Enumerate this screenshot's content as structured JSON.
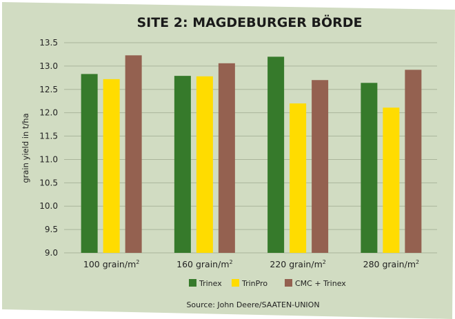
{
  "chart_data": {
    "type": "bar",
    "title": "SITE 2: MAGDEBURGER BÖRDE",
    "ylabel": "grain yield in t/ha",
    "xlabel": "",
    "ylim": [
      9.0,
      13.5
    ],
    "yticks": [
      "9.0",
      "9.5",
      "10.0",
      "10.5",
      "11.0",
      "11.5",
      "12.0",
      "12.5",
      "13.0",
      "13.5"
    ],
    "categories": [
      {
        "base": "100 grain/m",
        "sup": "2"
      },
      {
        "base": "160 grain/m",
        "sup": "2"
      },
      {
        "base": "220 grain/m",
        "sup": "2"
      },
      {
        "base": "280 grain/m",
        "sup": "2"
      }
    ],
    "series": [
      {
        "name": "Trinex",
        "color": "#367a2b",
        "values": [
          12.83,
          12.79,
          13.2,
          12.64
        ]
      },
      {
        "name": "TrinPro",
        "color": "#ffdc00",
        "values": [
          12.72,
          12.78,
          12.2,
          12.11
        ]
      },
      {
        "name": "CMC + Trinex",
        "color": "#946150",
        "values": [
          13.23,
          13.06,
          12.7,
          12.92
        ]
      }
    ],
    "grid": true,
    "legend": "bottom",
    "source": "Source: John Deere/SAATEN-UNION"
  },
  "colors": {
    "background": "#d1dcc2",
    "grid": "#a9b59b"
  }
}
